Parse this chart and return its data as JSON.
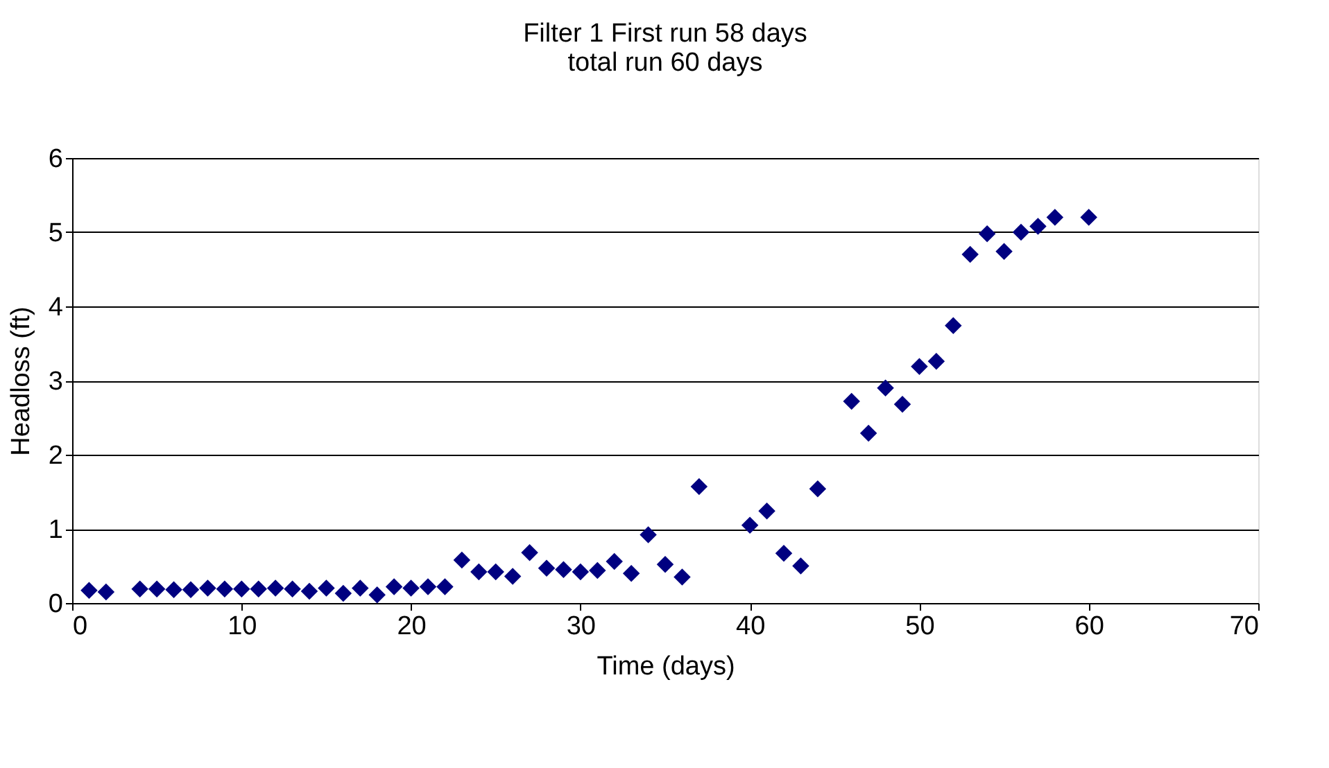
{
  "chart_data": {
    "type": "scatter",
    "title": [
      "Filter 1 First run 58 days",
      "total run 60 days"
    ],
    "xlabel": "Time (days)",
    "ylabel": "Headloss (ft)",
    "xlim": [
      0,
      70
    ],
    "xticks": [
      0,
      10,
      20,
      30,
      40,
      50,
      60,
      70
    ],
    "ylim": [
      0,
      6
    ],
    "yticks": [
      0,
      1,
      2,
      3,
      4,
      5,
      6
    ],
    "grid": "y",
    "marker": "diamond",
    "series": [
      {
        "color": "#000080",
        "x": [
          1,
          2,
          4,
          5,
          6,
          7,
          8,
          9,
          10,
          11,
          12,
          13,
          14,
          15,
          16,
          17,
          18,
          19,
          20,
          21,
          22,
          23,
          24,
          25,
          26,
          27,
          28,
          29,
          30,
          31,
          32,
          33,
          34,
          35,
          36,
          37,
          40,
          41,
          42,
          43,
          44,
          46,
          47,
          48,
          49,
          50,
          51,
          52,
          53,
          54,
          55,
          56,
          57,
          58,
          60
        ],
        "values": [
          0.17,
          0.15,
          0.19,
          0.19,
          0.18,
          0.18,
          0.2,
          0.19,
          0.19,
          0.19,
          0.2,
          0.19,
          0.16,
          0.2,
          0.13,
          0.2,
          0.11,
          0.22,
          0.2,
          0.22,
          0.22,
          0.58,
          0.42,
          0.42,
          0.36,
          0.68,
          0.47,
          0.45,
          0.42,
          0.44,
          0.56,
          0.4,
          0.92,
          0.52,
          0.35,
          1.57,
          1.05,
          1.24,
          0.67,
          0.5,
          1.54,
          2.72,
          2.29,
          2.9,
          2.68,
          3.19,
          3.26,
          3.74,
          4.7,
          4.98,
          4.74,
          5.0,
          5.08,
          5.2,
          5.2
        ]
      }
    ]
  }
}
